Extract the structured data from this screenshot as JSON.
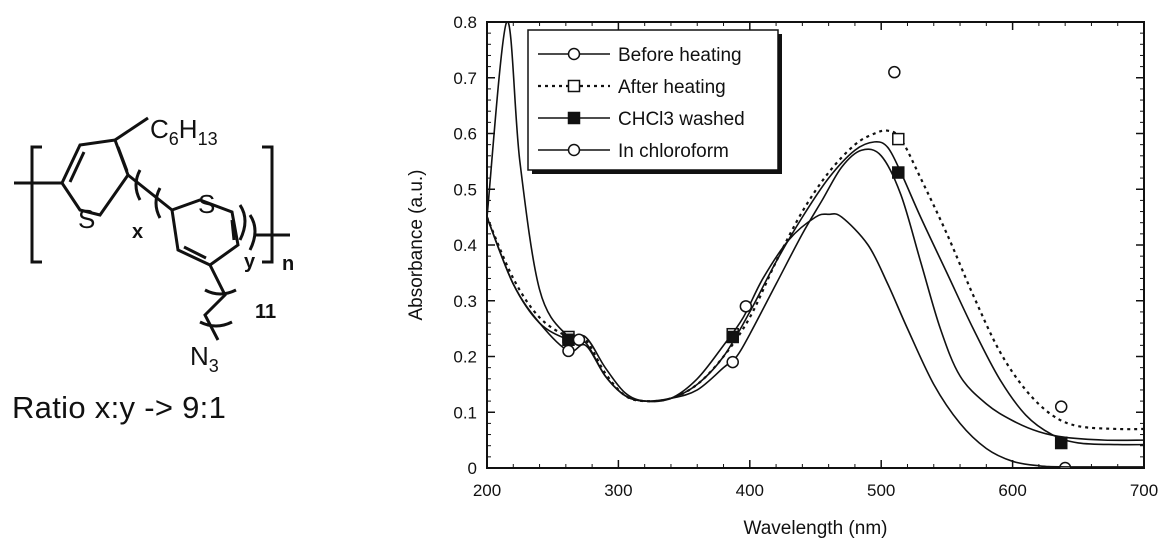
{
  "structure": {
    "substituent_top": "C",
    "substituent_top_sub1": "6",
    "substituent_top_mid": "H",
    "substituent_top_sub2": "13",
    "sulfur_1": "S",
    "sulfur_2": "S",
    "index_x": "x",
    "index_y": "y",
    "index_n": "n",
    "chain_length": "11",
    "azide": "N",
    "azide_sub": "3",
    "ratio_text": "Ratio x:y -> 9:1"
  },
  "chart_data": {
    "type": "line",
    "xlabel": "Wavelength (nm)",
    "ylabel": "Absorbance (a.u.)",
    "xlim": [
      200,
      700
    ],
    "ylim": [
      0,
      0.8
    ],
    "xticks": [
      200,
      300,
      400,
      500,
      600,
      700
    ],
    "yticks": [
      0,
      0.1,
      0.2,
      0.3,
      0.4,
      0.5,
      0.6,
      0.7,
      0.8
    ],
    "grid": false,
    "legend_position": "top-left",
    "series": [
      {
        "name": "Before heating",
        "marker": "open-circle",
        "line": "solid",
        "points": [
          [
            200,
            0.45
          ],
          [
            220,
            0.33
          ],
          [
            240,
            0.26
          ],
          [
            262,
            0.21
          ],
          [
            275,
            0.22
          ],
          [
            290,
            0.165
          ],
          [
            305,
            0.13
          ],
          [
            320,
            0.12
          ],
          [
            340,
            0.125
          ],
          [
            360,
            0.14
          ],
          [
            380,
            0.18
          ],
          [
            390,
            0.2
          ],
          [
            400,
            0.24
          ],
          [
            420,
            0.33
          ],
          [
            440,
            0.42
          ],
          [
            455,
            0.48
          ],
          [
            470,
            0.54
          ],
          [
            485,
            0.57
          ],
          [
            500,
            0.56
          ],
          [
            515,
            0.49
          ],
          [
            530,
            0.37
          ],
          [
            545,
            0.25
          ],
          [
            560,
            0.165
          ],
          [
            580,
            0.115
          ],
          [
            600,
            0.085
          ],
          [
            620,
            0.065
          ],
          [
            640,
            0.055
          ],
          [
            670,
            0.05
          ],
          [
            700,
            0.05
          ]
        ],
        "markers": [
          [
            262,
            0.21
          ],
          [
            387,
            0.19
          ],
          [
            640,
            0.0
          ]
        ]
      },
      {
        "name": "After heating",
        "marker": "open-square",
        "line": "dotted",
        "points": [
          [
            200,
            0.45
          ],
          [
            220,
            0.34
          ],
          [
            240,
            0.27
          ],
          [
            262,
            0.235
          ],
          [
            275,
            0.23
          ],
          [
            290,
            0.17
          ],
          [
            305,
            0.13
          ],
          [
            320,
            0.12
          ],
          [
            340,
            0.125
          ],
          [
            360,
            0.15
          ],
          [
            380,
            0.2
          ],
          [
            400,
            0.27
          ],
          [
            420,
            0.37
          ],
          [
            440,
            0.46
          ],
          [
            460,
            0.53
          ],
          [
            480,
            0.58
          ],
          [
            495,
            0.6
          ],
          [
            505,
            0.605
          ],
          [
            515,
            0.59
          ],
          [
            530,
            0.52
          ],
          [
            550,
            0.42
          ],
          [
            570,
            0.31
          ],
          [
            590,
            0.21
          ],
          [
            610,
            0.14
          ],
          [
            630,
            0.095
          ],
          [
            650,
            0.075
          ],
          [
            680,
            0.07
          ],
          [
            700,
            0.07
          ]
        ],
        "markers": [
          [
            262,
            0.235
          ],
          [
            387,
            0.24
          ],
          [
            513,
            0.59
          ],
          [
            637,
            0.045
          ]
        ]
      },
      {
        "name": "CHCl3 washed",
        "marker": "filled-square",
        "line": "solid",
        "points": [
          [
            200,
            0.45
          ],
          [
            220,
            0.33
          ],
          [
            240,
            0.26
          ],
          [
            262,
            0.23
          ],
          [
            275,
            0.225
          ],
          [
            290,
            0.165
          ],
          [
            305,
            0.13
          ],
          [
            320,
            0.12
          ],
          [
            340,
            0.125
          ],
          [
            360,
            0.15
          ],
          [
            380,
            0.2
          ],
          [
            400,
            0.28
          ],
          [
            420,
            0.37
          ],
          [
            440,
            0.45
          ],
          [
            460,
            0.52
          ],
          [
            480,
            0.57
          ],
          [
            495,
            0.585
          ],
          [
            505,
            0.575
          ],
          [
            515,
            0.53
          ],
          [
            530,
            0.45
          ],
          [
            550,
            0.35
          ],
          [
            570,
            0.25
          ],
          [
            590,
            0.16
          ],
          [
            610,
            0.095
          ],
          [
            630,
            0.06
          ],
          [
            650,
            0.045
          ],
          [
            680,
            0.042
          ],
          [
            700,
            0.042
          ]
        ],
        "markers": [
          [
            262,
            0.23
          ],
          [
            387,
            0.235
          ],
          [
            513,
            0.53
          ],
          [
            637,
            0.045
          ]
        ]
      },
      {
        "name": "In chloroform",
        "marker": "open-circle",
        "line": "solid",
        "points": [
          [
            200,
            0.45
          ],
          [
            215,
            0.8
          ],
          [
            225,
            0.55
          ],
          [
            240,
            0.32
          ],
          [
            260,
            0.24
          ],
          [
            275,
            0.235
          ],
          [
            290,
            0.18
          ],
          [
            305,
            0.135
          ],
          [
            320,
            0.12
          ],
          [
            340,
            0.125
          ],
          [
            360,
            0.16
          ],
          [
            380,
            0.22
          ],
          [
            395,
            0.27
          ],
          [
            410,
            0.34
          ],
          [
            430,
            0.41
          ],
          [
            450,
            0.45
          ],
          [
            460,
            0.455
          ],
          [
            470,
            0.45
          ],
          [
            490,
            0.4
          ],
          [
            505,
            0.33
          ],
          [
            520,
            0.25
          ],
          [
            540,
            0.15
          ],
          [
            560,
            0.08
          ],
          [
            580,
            0.035
          ],
          [
            600,
            0.012
          ],
          [
            620,
            0.004
          ],
          [
            640,
            0.002
          ],
          [
            700,
            0.002
          ]
        ],
        "markers": [
          [
            270,
            0.23
          ],
          [
            397,
            0.29
          ],
          [
            510,
            0.71
          ],
          [
            637,
            0.11
          ]
        ]
      }
    ],
    "extra_markers_series": "Before heating"
  }
}
